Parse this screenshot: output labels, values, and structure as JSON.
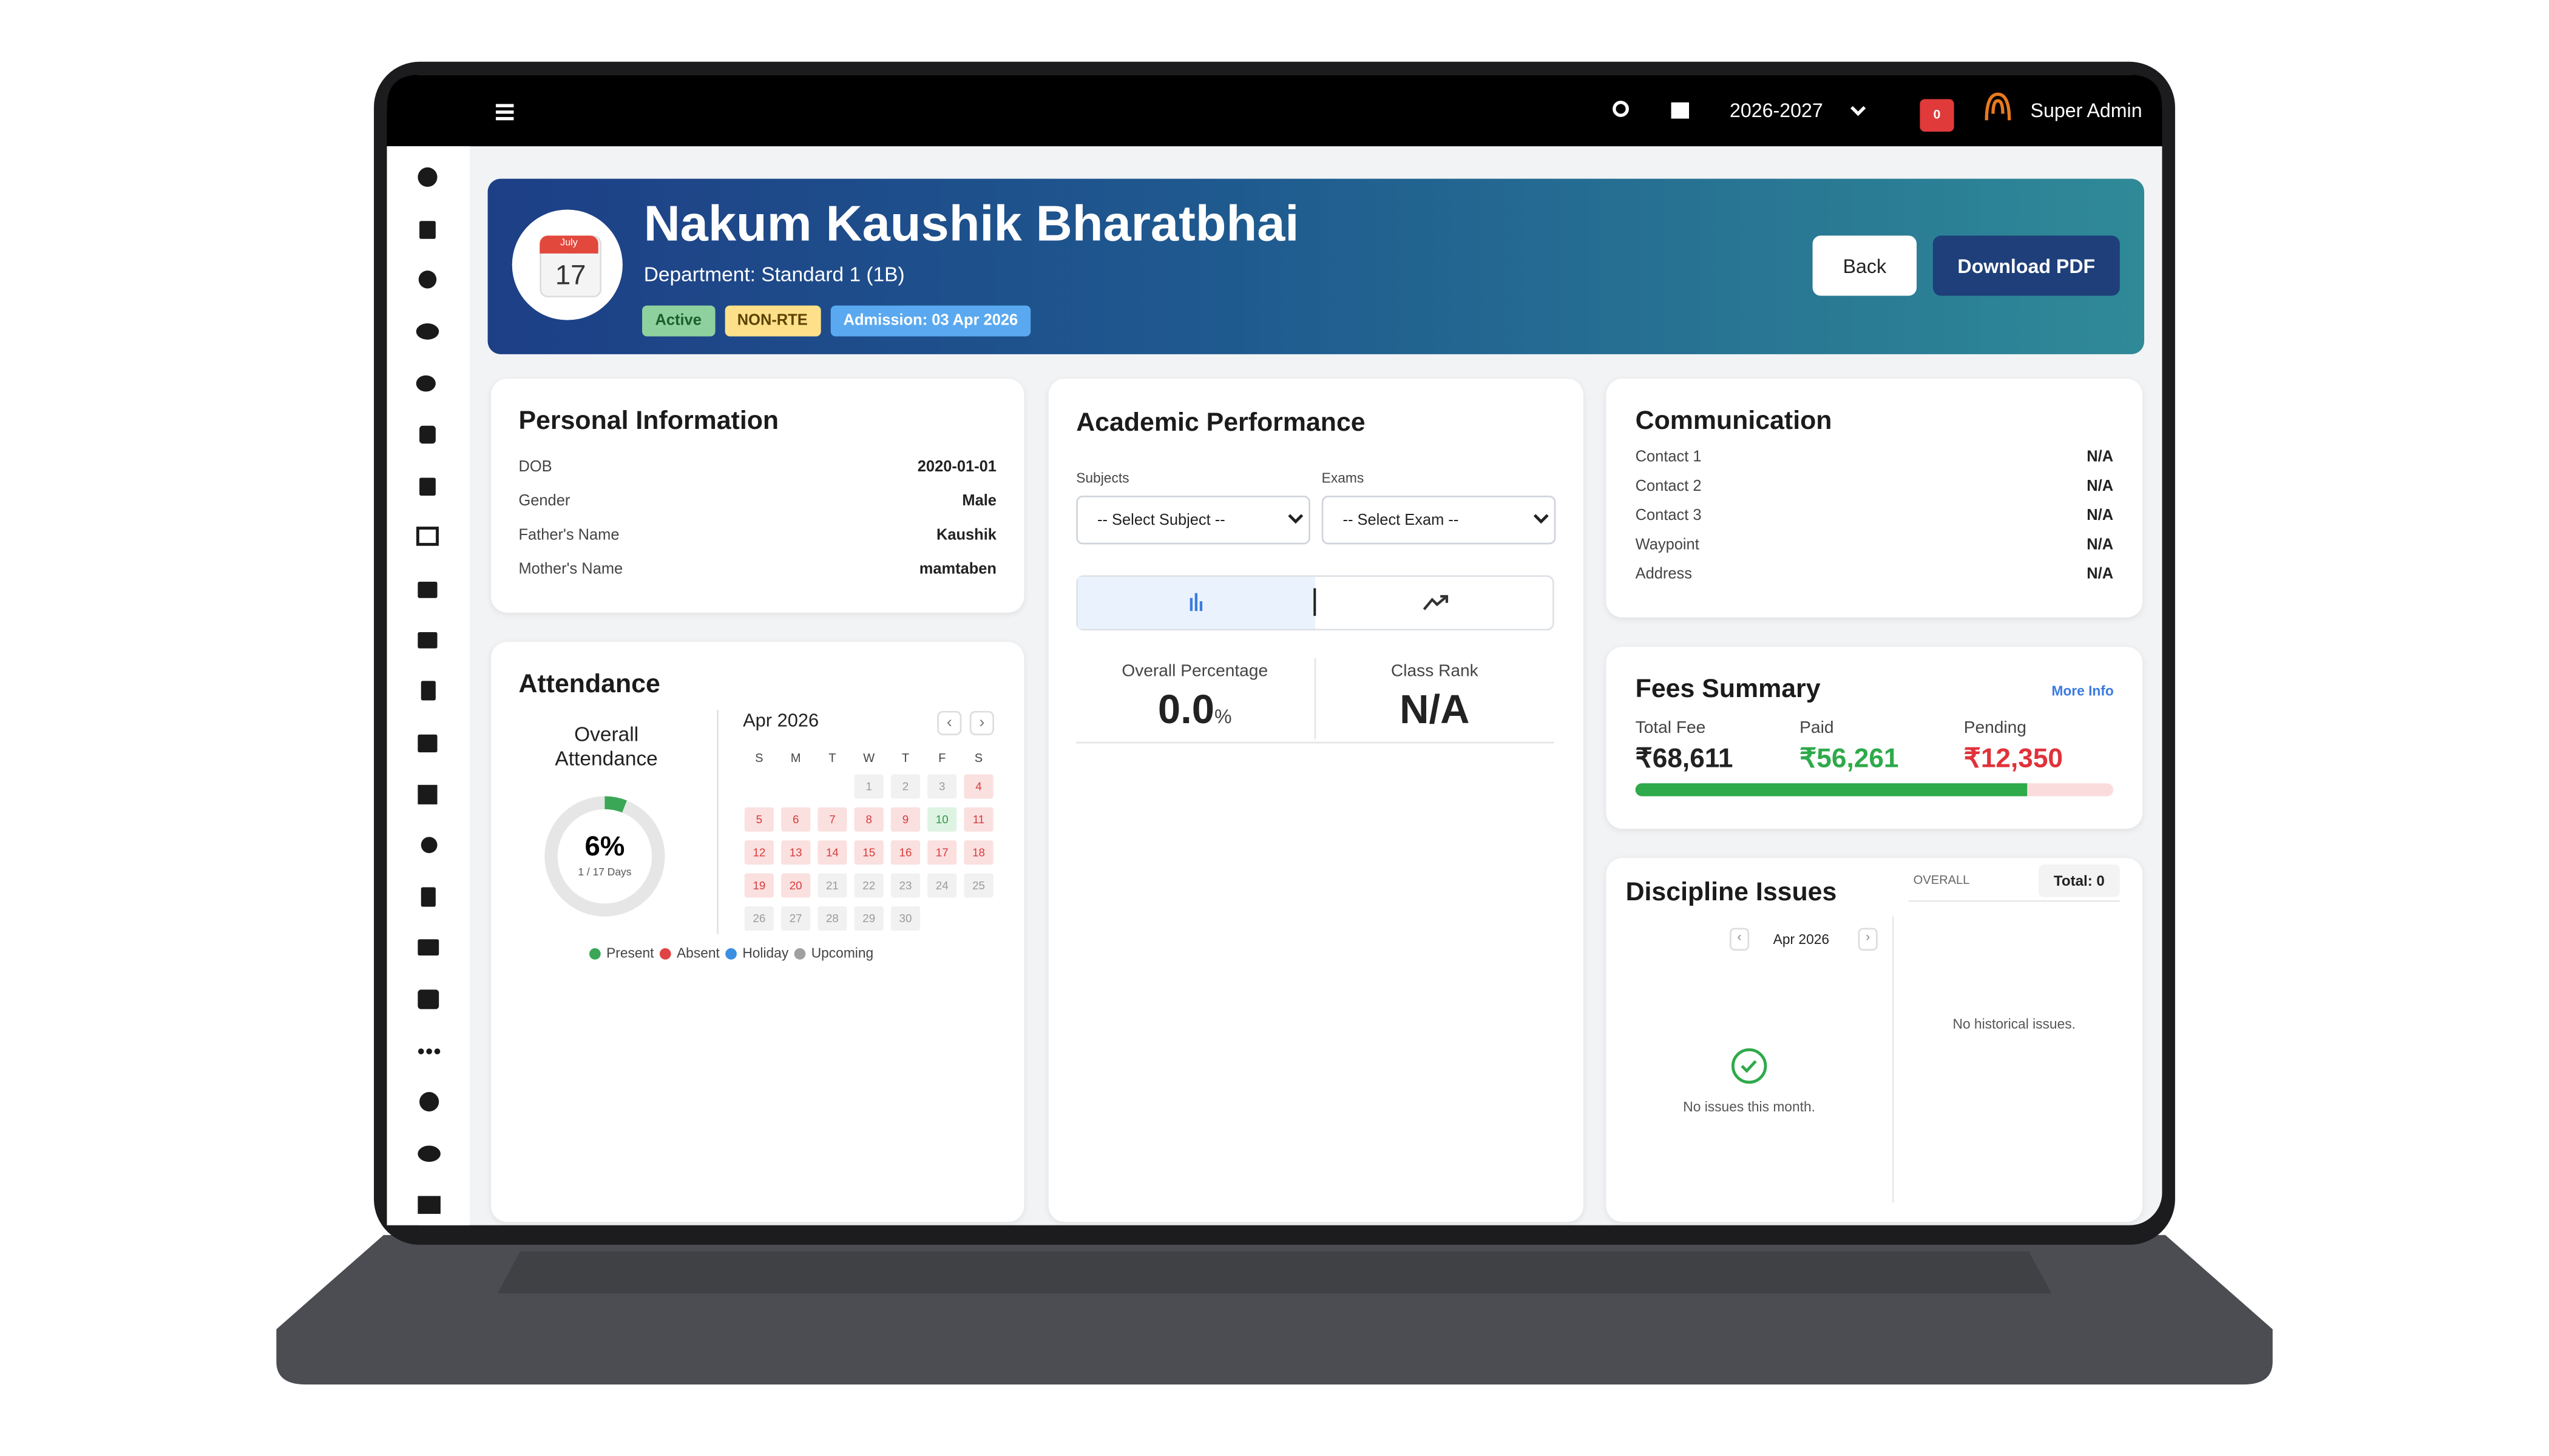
{
  "topbar": {
    "year": "2026-2027",
    "notifications": "0",
    "user": "Super Admin"
  },
  "profile": {
    "calendar_month": "July",
    "calendar_day": "17",
    "name": "Nakum Kaushik Bharatbhai",
    "department": "Department: Standard 1 (1B)",
    "badges": [
      {
        "text": "Active",
        "color": "#8fd19e",
        "text_color": "#1d5e2c"
      },
      {
        "text": "NON-RTE",
        "color": "#ffe08a",
        "text_color": "#5a4300"
      },
      {
        "text": "Admission: 03 Apr 2026",
        "color": "#5aa9f0",
        "text_color": "#ffffff"
      }
    ],
    "back": "Back",
    "download": "Download PDF"
  },
  "personal": {
    "title": "Personal Information",
    "rows": [
      {
        "label": "DOB",
        "value": "2020-01-01"
      },
      {
        "label": "Gender",
        "value": "Male"
      },
      {
        "label": "Father's Name",
        "value": "Kaushik"
      },
      {
        "label": "Mother's Name",
        "value": "mamtaben"
      }
    ]
  },
  "attendance": {
    "title": "Attendance",
    "overall_label": "Overall Attendance",
    "percent": "6%",
    "days": "1 / 17 Days",
    "month": "Apr 2026",
    "weekdays": [
      "S",
      "M",
      "T",
      "W",
      "T",
      "F",
      "S"
    ],
    "first_weekday": 3,
    "calendar": [
      {
        "day": "1",
        "status": "upcoming"
      },
      {
        "day": "2",
        "status": "upcoming"
      },
      {
        "day": "3",
        "status": "upcoming"
      },
      {
        "day": "4",
        "status": "absent"
      },
      {
        "day": "5",
        "status": "absent"
      },
      {
        "day": "6",
        "status": "absent"
      },
      {
        "day": "7",
        "status": "absent"
      },
      {
        "day": "8",
        "status": "absent"
      },
      {
        "day": "9",
        "status": "absent"
      },
      {
        "day": "10",
        "status": "present"
      },
      {
        "day": "11",
        "status": "absent"
      },
      {
        "day": "12",
        "status": "absent"
      },
      {
        "day": "13",
        "status": "absent"
      },
      {
        "day": "14",
        "status": "absent"
      },
      {
        "day": "15",
        "status": "absent"
      },
      {
        "day": "16",
        "status": "absent"
      },
      {
        "day": "17",
        "status": "absent"
      },
      {
        "day": "18",
        "status": "absent"
      },
      {
        "day": "19",
        "status": "absent"
      },
      {
        "day": "20",
        "status": "absent"
      },
      {
        "day": "21",
        "status": "upcoming"
      },
      {
        "day": "22",
        "status": "upcoming"
      },
      {
        "day": "23",
        "status": "upcoming"
      },
      {
        "day": "24",
        "status": "upcoming"
      },
      {
        "day": "25",
        "status": "upcoming"
      },
      {
        "day": "26",
        "status": "upcoming"
      },
      {
        "day": "27",
        "status": "upcoming"
      },
      {
        "day": "28",
        "status": "upcoming"
      },
      {
        "day": "29",
        "status": "upcoming"
      },
      {
        "day": "30",
        "status": "upcoming"
      }
    ],
    "legend": [
      {
        "name": "Present",
        "color": "#3aa757"
      },
      {
        "name": "Absent",
        "color": "#e04444"
      },
      {
        "name": "Holiday",
        "color": "#3b8fe0"
      },
      {
        "name": "Upcoming",
        "color": "#a0a0a0"
      }
    ]
  },
  "academic": {
    "title": "Academic Performance",
    "subjects_label": "Subjects",
    "subjects_placeholder": "-- Select Subject --",
    "exams_label": "Exams",
    "exams_placeholder": "-- Select Exam --",
    "overall_label": "Overall Percentage",
    "overall_value": "0.0",
    "overall_unit": "%",
    "rank_label": "Class Rank",
    "rank_value": "N/A"
  },
  "communication": {
    "title": "Communication",
    "rows": [
      {
        "label": "Contact 1",
        "value": "N/A"
      },
      {
        "label": "Contact 2",
        "value": "N/A"
      },
      {
        "label": "Contact 3",
        "value": "N/A"
      },
      {
        "label": "Waypoint",
        "value": "N/A"
      },
      {
        "label": "Address",
        "value": "N/A"
      }
    ]
  },
  "fees": {
    "title": "Fees Summary",
    "more": "More Info",
    "items": [
      {
        "label": "Total Fee",
        "value": "₹68,611",
        "color": "#222222"
      },
      {
        "label": "Paid",
        "value": "₹56,261",
        "color": "#2eaa4a"
      },
      {
        "label": "Pending",
        "value": "₹12,350",
        "color": "#e0323a"
      }
    ]
  },
  "discipline": {
    "title": "Discipline Issues",
    "overall": "OVERALL",
    "total": "Total: 0",
    "month": "Apr 2026",
    "empty_month": "No issues this month.",
    "empty_history": "No historical issues."
  }
}
